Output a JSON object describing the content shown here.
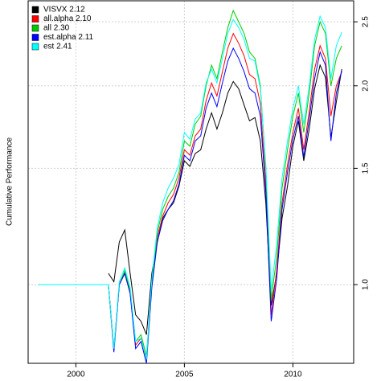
{
  "chart_data": {
    "type": "line",
    "y_label": "Cumulative Performance",
    "x": [
      1998.25,
      2001.5,
      2001.75,
      2002,
      2002.25,
      2002.5,
      2002.75,
      2003,
      2003.25,
      2003.5,
      2003.75,
      2004,
      2004.25,
      2004.5,
      2004.75,
      2005,
      2005.25,
      2005.5,
      2005.75,
      2006,
      2006.25,
      2006.5,
      2006.75,
      2007,
      2007.25,
      2007.5,
      2007.75,
      2008,
      2008.25,
      2008.5,
      2008.75,
      2009,
      2009.25,
      2009.5,
      2009.75,
      2010,
      2010.25,
      2010.5,
      2010.75,
      2011,
      2011.25,
      2011.5,
      2011.75,
      2012,
      2012.25
    ],
    "series": [
      {
        "name": "VISVX 2.12",
        "color": "#000000",
        "values": [
          null,
          1.04,
          1.01,
          1.16,
          1.21,
          1.04,
          0.9,
          0.88,
          0.84,
          1.04,
          1.16,
          1.26,
          1.3,
          1.33,
          1.41,
          1.54,
          1.51,
          1.58,
          1.6,
          1.72,
          1.82,
          1.72,
          1.82,
          1.95,
          2.03,
          1.98,
          1.87,
          1.77,
          1.79,
          1.65,
          1.33,
          0.93,
          1.04,
          1.26,
          1.41,
          1.62,
          1.77,
          1.54,
          1.72,
          1.98,
          2.15,
          2.06,
          1.67,
          1.89,
          2.12
        ]
      },
      {
        "name": "all.alpha 2.10",
        "color": "#ff0000",
        "values": [
          null,
          1.0,
          0.8,
          1.0,
          1.04,
          0.97,
          0.81,
          0.83,
          0.77,
          1.0,
          1.18,
          1.27,
          1.33,
          1.37,
          1.45,
          1.6,
          1.57,
          1.68,
          1.72,
          1.9,
          2.02,
          1.93,
          2.1,
          2.28,
          2.4,
          2.32,
          2.22,
          2.08,
          2.05,
          1.88,
          1.42,
          0.9,
          1.05,
          1.33,
          1.52,
          1.7,
          1.85,
          1.6,
          1.83,
          2.12,
          2.3,
          2.2,
          1.8,
          2.0,
          2.1
        ]
      },
      {
        "name": "all 2.30",
        "color": "#00cc00",
        "values": [
          null,
          1.0,
          0.8,
          1.0,
          1.05,
          0.98,
          0.82,
          0.84,
          0.78,
          1.0,
          1.2,
          1.3,
          1.36,
          1.4,
          1.48,
          1.65,
          1.62,
          1.75,
          1.8,
          2.0,
          2.15,
          2.05,
          2.25,
          2.45,
          2.6,
          2.5,
          2.4,
          2.25,
          2.2,
          2.0,
          1.5,
          0.95,
          1.1,
          1.4,
          1.6,
          1.8,
          1.95,
          1.7,
          1.95,
          2.3,
          2.5,
          2.4,
          2.0,
          2.2,
          2.3
        ]
      },
      {
        "name": "est.alpha 2.11",
        "color": "#0000ff",
        "values": [
          null,
          1.0,
          0.79,
          1.0,
          1.04,
          0.97,
          0.8,
          0.82,
          0.76,
          0.99,
          1.16,
          1.25,
          1.3,
          1.34,
          1.42,
          1.57,
          1.54,
          1.65,
          1.68,
          1.85,
          1.95,
          1.86,
          2.02,
          2.18,
          2.28,
          2.2,
          2.1,
          1.98,
          1.95,
          1.8,
          1.38,
          0.88,
          1.02,
          1.3,
          1.48,
          1.66,
          1.8,
          1.56,
          1.78,
          2.05,
          2.25,
          2.15,
          1.65,
          1.95,
          2.11
        ]
      },
      {
        "name": "est 2.41",
        "color": "#00ffff",
        "values": [
          1.0,
          1.0,
          0.8,
          1.01,
          1.06,
          0.99,
          0.82,
          0.83,
          0.77,
          1.02,
          1.22,
          1.33,
          1.4,
          1.45,
          1.52,
          1.7,
          1.66,
          1.78,
          1.82,
          2.02,
          2.12,
          2.02,
          2.2,
          2.4,
          2.52,
          2.45,
          2.35,
          2.2,
          2.18,
          1.98,
          1.52,
          0.98,
          1.15,
          1.45,
          1.65,
          1.85,
          2.0,
          1.75,
          2.0,
          2.35,
          2.55,
          2.45,
          2.05,
          2.3,
          2.41
        ]
      }
    ],
    "xlim": [
      1997.8,
      2012.8
    ],
    "xticks": [
      2000,
      2005,
      2010
    ],
    "ylim": [
      0.76,
      2.69
    ],
    "yticks": [
      {
        "value": 1,
        "label": "1.0"
      },
      1.5,
      {
        "value": 2,
        "label": "2.0"
      },
      2.5
    ],
    "log_y": true,
    "grid": true,
    "legend": "top-left"
  }
}
